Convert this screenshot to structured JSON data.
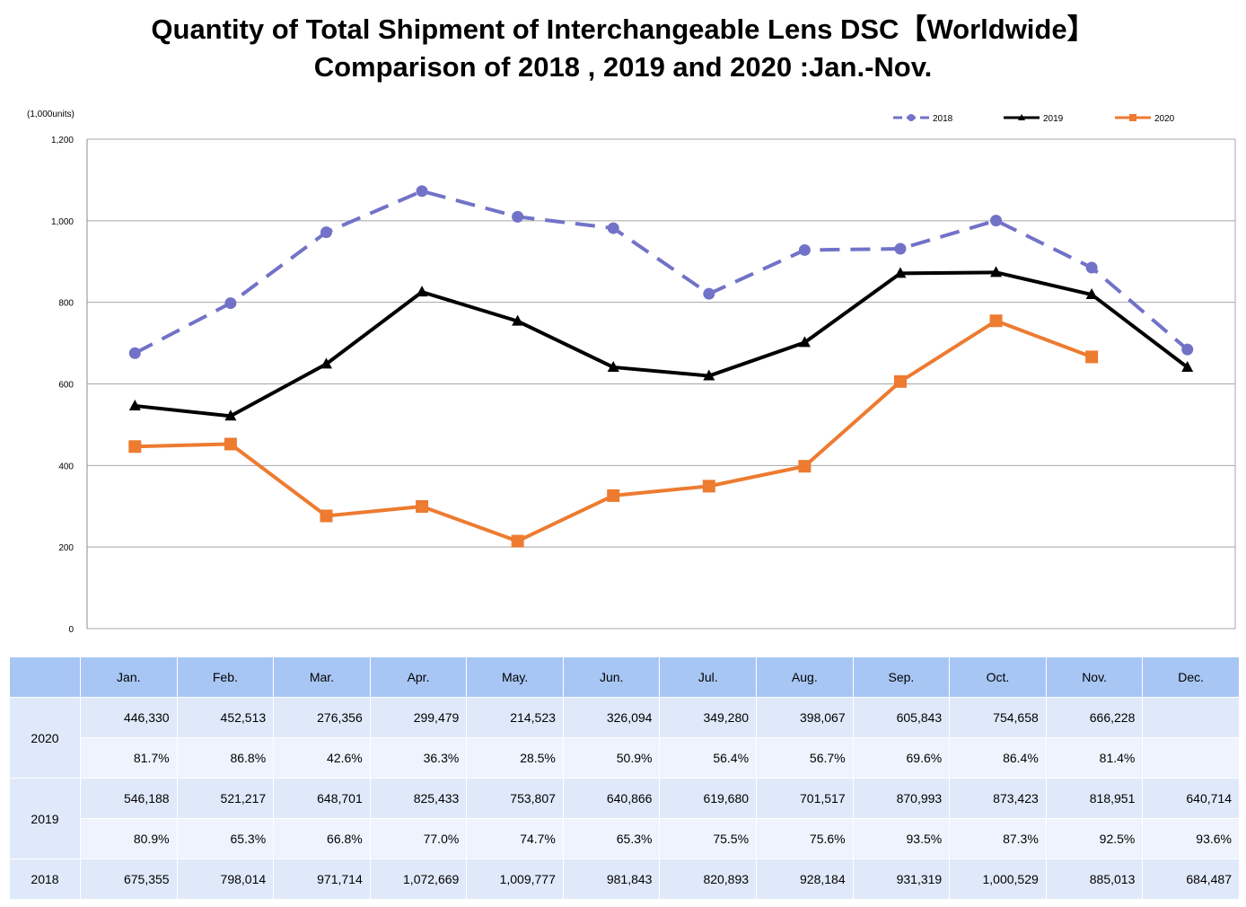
{
  "title_line1": "Quantity of Total Shipment of Interchangeable Lens DSC【Worldwide】",
  "title_line2": "Comparison of 2018 , 2019 and 2020 :Jan.-Nov.",
  "unit_label": "(1,000units)",
  "chart_data": {
    "type": "line",
    "title": "Quantity of Total Shipment of Interchangeable Lens DSC【Worldwide】 Comparison of 2018 , 2019 and 2020 :Jan.-Nov.",
    "ylabel": "(1,000units)",
    "ylim": [
      0,
      1200
    ],
    "yticks": [
      0,
      200,
      400,
      600,
      800,
      1000,
      1200
    ],
    "ytick_labels": [
      "0",
      "200",
      "400",
      "600",
      "800",
      "1,000",
      "1,200"
    ],
    "categories": [
      "Jan.",
      "Feb.",
      "Mar.",
      "Apr.",
      "May.",
      "Jun.",
      "Jul.",
      "Aug.",
      "Sep.",
      "Oct.",
      "Nov.",
      "Dec."
    ],
    "grid": true,
    "legend_position": "top-right",
    "series": [
      {
        "name": "2018",
        "color": "#7272c8",
        "style": "dashed",
        "marker": "circle",
        "values": [
          675.355,
          798.014,
          971.714,
          1072.669,
          1009.777,
          981.843,
          820.893,
          928.184,
          931.319,
          1000.529,
          885.013,
          684.487
        ]
      },
      {
        "name": "2019",
        "color": "#000000",
        "style": "solid",
        "marker": "triangle",
        "values": [
          546.188,
          521.217,
          648.701,
          825.433,
          753.807,
          640.866,
          619.68,
          701.517,
          870.993,
          873.423,
          818.951,
          640.714
        ]
      },
      {
        "name": "2020",
        "color": "#ed7b30",
        "style": "solid",
        "marker": "square",
        "values": [
          446.33,
          452.513,
          276.356,
          299.479,
          214.523,
          326.094,
          349.28,
          398.067,
          605.843,
          754.658,
          666.228,
          null
        ]
      }
    ]
  },
  "table": {
    "headers": [
      "Jan.",
      "Feb.",
      "Mar.",
      "Apr.",
      "May.",
      "Jun.",
      "Jul.",
      "Aug.",
      "Sep.",
      "Oct.",
      "Nov.",
      "Dec."
    ],
    "rows": [
      {
        "year": "2020",
        "values": [
          "446,330",
          "452,513",
          "276,356",
          "299,479",
          "214,523",
          "326,094",
          "349,280",
          "398,067",
          "605,843",
          "754,658",
          "666,228",
          ""
        ],
        "percents": [
          "81.7%",
          "86.8%",
          "42.6%",
          "36.3%",
          "28.5%",
          "50.9%",
          "56.4%",
          "56.7%",
          "69.6%",
          "86.4%",
          "81.4%",
          ""
        ]
      },
      {
        "year": "2019",
        "values": [
          "546,188",
          "521,217",
          "648,701",
          "825,433",
          "753,807",
          "640,866",
          "619,680",
          "701,517",
          "870,993",
          "873,423",
          "818,951",
          "640,714"
        ],
        "percents": [
          "80.9%",
          "65.3%",
          "66.8%",
          "77.0%",
          "74.7%",
          "65.3%",
          "75.5%",
          "75.6%",
          "93.5%",
          "87.3%",
          "92.5%",
          "93.6%"
        ]
      },
      {
        "year": "2018",
        "values": [
          "675,355",
          "798,014",
          "971,714",
          "1,072,669",
          "1,009,777",
          "981,843",
          "820,893",
          "928,184",
          "931,319",
          "1,000,529",
          "885,013",
          "684,487"
        ]
      }
    ]
  }
}
